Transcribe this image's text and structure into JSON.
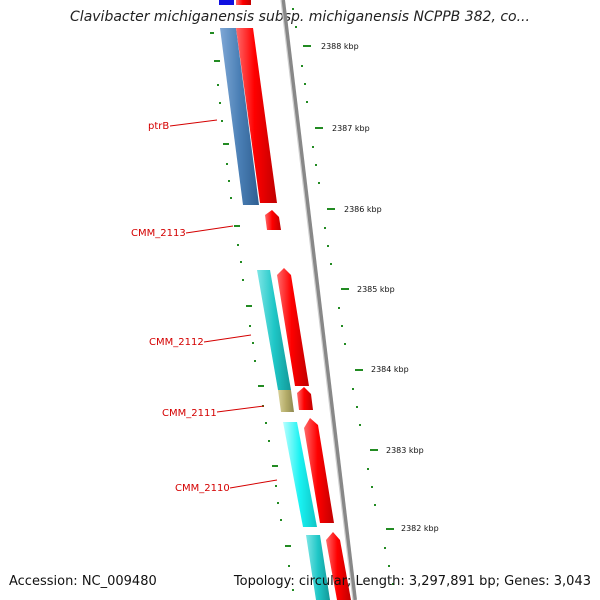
{
  "title": "Clavibacter michiganensis subsp. michiganensis NCPPB 382, co...",
  "footer": {
    "accession": "Accession: NC_009480",
    "summary": "Topology: circular; Length: 3,297,891 bp; Genes: 3,043"
  },
  "tick_labels": [
    "2388 kbp",
    "2387 kbp",
    "2386 kbp",
    "2385 kbp",
    "2384 kbp",
    "2383 kbp",
    "2382 kbp"
  ],
  "gene_labels": [
    "ptrB",
    "CMM_2113",
    "CMM_2112",
    "CMM_2111",
    "CMM_2110"
  ],
  "colors": {
    "cds": "#ff0000",
    "ptrB_feature": "#4a7fb5",
    "CMM_2112_feature": "#1fc7c7",
    "CMM_2111_feature": "#b5ad6a",
    "CMM_2110_feature": "#19f2f2",
    "backbone": "#888888",
    "ticks": "#228b22",
    "label": "#d40000"
  }
}
